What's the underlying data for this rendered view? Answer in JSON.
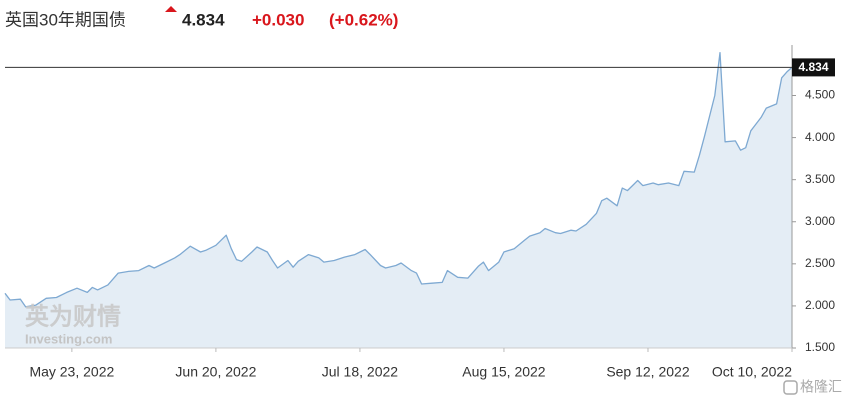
{
  "chart_data": {
    "type": "area",
    "title": "英国30年期国债",
    "price": "4.834",
    "change": "+0.030",
    "change_pct": "(+0.62%)",
    "watermark": "英为财情",
    "watermark_sub": "Investing.com",
    "source_logo": "格隆汇",
    "line_color": "#7ea9d2",
    "fill_color": "#e4edf5",
    "change_color": "#d9161c",
    "grid": false,
    "current": {
      "value": 4.834,
      "label": "4.834"
    },
    "xlim": [
      "2022-05-10",
      "2022-10-10"
    ],
    "xticks": [
      {
        "value": "2022-05-23",
        "label": "May 23, 2022"
      },
      {
        "value": "2022-06-20",
        "label": "Jun 20, 2022"
      },
      {
        "value": "2022-07-18",
        "label": "Jul 18, 2022"
      },
      {
        "value": "2022-08-15",
        "label": "Aug 15, 2022"
      },
      {
        "value": "2022-09-12",
        "label": "Sep 12, 2022"
      },
      {
        "value": "2022-10-10",
        "label": "Oct 10, 2022"
      }
    ],
    "ylim": [
      1.5,
      5.1
    ],
    "yticks": [
      {
        "value": 1.5,
        "label": "1.500"
      },
      {
        "value": 2.0,
        "label": "2.000"
      },
      {
        "value": 2.5,
        "label": "2.500"
      },
      {
        "value": 3.0,
        "label": "3.000"
      },
      {
        "value": 3.5,
        "label": "3.500"
      },
      {
        "value": 4.0,
        "label": "4.000"
      },
      {
        "value": 4.5,
        "label": "4.500"
      }
    ],
    "x": [
      "2022-05-10",
      "2022-05-11",
      "2022-05-13",
      "2022-05-14",
      "2022-05-16",
      "2022-05-18",
      "2022-05-20",
      "2022-05-22",
      "2022-05-24",
      "2022-05-26",
      "2022-05-27",
      "2022-05-28",
      "2022-05-30",
      "2022-06-01",
      "2022-06-03",
      "2022-06-05",
      "2022-06-07",
      "2022-06-08",
      "2022-06-10",
      "2022-06-12",
      "2022-06-13",
      "2022-06-15",
      "2022-06-17",
      "2022-06-18",
      "2022-06-20",
      "2022-06-22",
      "2022-06-23",
      "2022-06-24",
      "2022-06-25",
      "2022-06-27",
      "2022-06-28",
      "2022-06-30",
      "2022-07-01",
      "2022-07-02",
      "2022-07-04",
      "2022-07-05",
      "2022-07-06",
      "2022-07-08",
      "2022-07-10",
      "2022-07-11",
      "2022-07-13",
      "2022-07-15",
      "2022-07-17",
      "2022-07-19",
      "2022-07-20",
      "2022-07-22",
      "2022-07-23",
      "2022-07-25",
      "2022-07-26",
      "2022-07-28",
      "2022-07-29",
      "2022-07-30",
      "2022-08-01",
      "2022-08-03",
      "2022-08-04",
      "2022-08-06",
      "2022-08-08",
      "2022-08-10",
      "2022-08-11",
      "2022-08-12",
      "2022-08-14",
      "2022-08-15",
      "2022-08-17",
      "2022-08-19",
      "2022-08-20",
      "2022-08-22",
      "2022-08-23",
      "2022-08-25",
      "2022-08-26",
      "2022-08-28",
      "2022-08-29",
      "2022-08-31",
      "2022-09-02",
      "2022-09-03",
      "2022-09-04",
      "2022-09-06",
      "2022-09-07",
      "2022-09-08",
      "2022-09-10",
      "2022-09-11",
      "2022-09-13",
      "2022-09-14",
      "2022-09-16",
      "2022-09-18",
      "2022-09-19",
      "2022-09-21",
      "2022-09-22",
      "2022-09-23",
      "2022-09-25",
      "2022-09-26",
      "2022-09-27",
      "2022-09-29",
      "2022-09-30",
      "2022-10-01",
      "2022-10-02",
      "2022-10-04",
      "2022-10-05",
      "2022-10-07",
      "2022-10-08",
      "2022-10-09",
      "2022-10-10"
    ],
    "values": [
      2.15,
      2.07,
      2.08,
      1.99,
      2.01,
      2.09,
      2.1,
      2.16,
      2.21,
      2.16,
      2.22,
      2.19,
      2.25,
      2.39,
      2.41,
      2.42,
      2.48,
      2.45,
      2.51,
      2.57,
      2.61,
      2.71,
      2.64,
      2.66,
      2.72,
      2.84,
      2.68,
      2.55,
      2.53,
      2.64,
      2.7,
      2.64,
      2.54,
      2.45,
      2.54,
      2.46,
      2.53,
      2.61,
      2.57,
      2.52,
      2.54,
      2.58,
      2.61,
      2.67,
      2.61,
      2.48,
      2.45,
      2.48,
      2.51,
      2.42,
      2.39,
      2.26,
      2.27,
      2.28,
      2.42,
      2.34,
      2.33,
      2.47,
      2.52,
      2.42,
      2.52,
      2.64,
      2.68,
      2.78,
      2.83,
      2.87,
      2.92,
      2.87,
      2.86,
      2.9,
      2.89,
      2.97,
      3.1,
      3.25,
      3.28,
      3.19,
      3.4,
      3.37,
      3.49,
      3.43,
      3.46,
      3.44,
      3.46,
      3.43,
      3.6,
      3.59,
      3.79,
      4.02,
      4.5,
      5.01,
      3.95,
      3.96,
      3.85,
      3.88,
      4.08,
      4.24,
      4.35,
      4.4,
      4.71,
      4.78,
      4.834
    ]
  }
}
